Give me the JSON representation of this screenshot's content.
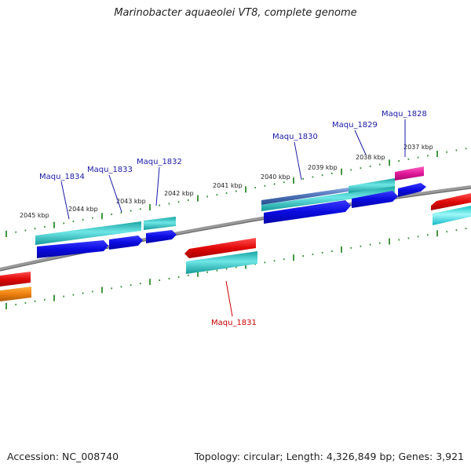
{
  "title": "Marinobacter aquaeolei VT8, complete genome",
  "footer": {
    "accession": "Accession: NC_008740",
    "info": "Topology: circular; Length: 4,326,849 bp; Genes: 3,921"
  },
  "colors": {
    "backbone": "#8a8a8a",
    "tick": "#2e8b2e",
    "blue_label": "#1a1aa6",
    "red_label": "#cc0000",
    "cyan": "#2bc3c3",
    "blue": "#1010dd",
    "red": "#e01010",
    "magenta": "#e0209a",
    "orange": "#ee8a10",
    "steel": "#5a7fbf"
  },
  "tick_labels": [
    "2037 kbp",
    "2038 kbp",
    "2039 kbp",
    "2040 kbp",
    "2041 kbp",
    "2042 kbp",
    "2043 kbp",
    "2044 kbp",
    "2045 kbp"
  ],
  "gene_labels": [
    {
      "text": "Maqu_1828",
      "strand": "forward"
    },
    {
      "text": "Maqu_1829",
      "strand": "forward"
    },
    {
      "text": "Maqu_1830",
      "strand": "forward"
    },
    {
      "text": "Maqu_1831",
      "strand": "reverse"
    },
    {
      "text": "Maqu_1832",
      "strand": "forward"
    },
    {
      "text": "Maqu_1833",
      "strand": "forward"
    },
    {
      "text": "Maqu_1834",
      "strand": "forward"
    }
  ]
}
